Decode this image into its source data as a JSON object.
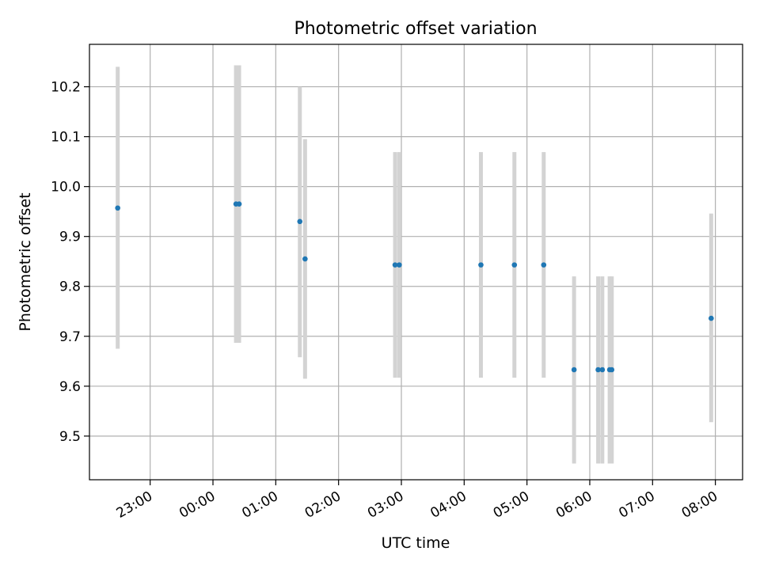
{
  "chart_data": {
    "type": "scatter",
    "title": "Photometric offset variation",
    "xlabel": "UTC time",
    "ylabel": "Photometric offset",
    "xlim": [
      "22:02",
      "08:26"
    ],
    "ylim": [
      9.4125,
      10.285
    ],
    "x_ticks": [
      "23:00",
      "00:00",
      "01:00",
      "02:00",
      "03:00",
      "04:00",
      "05:00",
      "06:00",
      "07:00",
      "08:00"
    ],
    "y_ticks": [
      9.5,
      9.6,
      9.7,
      9.8,
      9.9,
      10.0,
      10.1,
      10.2
    ],
    "grid": true,
    "errorbar_color": "#d3d3d3",
    "marker_color": "#1f77b4",
    "points": [
      {
        "time": "22:29",
        "y": 9.957,
        "ylow": 9.675,
        "yhigh": 10.24
      },
      {
        "time": "00:22",
        "y": 9.965,
        "ylow": 9.687,
        "yhigh": 10.243
      },
      {
        "time": "00:25",
        "y": 9.965,
        "ylow": 9.687,
        "yhigh": 10.243
      },
      {
        "time": "01:23",
        "y": 9.93,
        "ylow": 9.658,
        "yhigh": 10.2
      },
      {
        "time": "01:28",
        "y": 9.855,
        "ylow": 9.615,
        "yhigh": 10.095
      },
      {
        "time": "02:54",
        "y": 9.843,
        "ylow": 9.617,
        "yhigh": 10.069
      },
      {
        "time": "02:58",
        "y": 9.843,
        "ylow": 9.617,
        "yhigh": 10.069
      },
      {
        "time": "04:16",
        "y": 9.843,
        "ylow": 9.617,
        "yhigh": 10.069
      },
      {
        "time": "04:48",
        "y": 9.843,
        "ylow": 9.617,
        "yhigh": 10.069
      },
      {
        "time": "05:16",
        "y": 9.843,
        "ylow": 9.617,
        "yhigh": 10.069
      },
      {
        "time": "05:45",
        "y": 9.633,
        "ylow": 9.445,
        "yhigh": 9.82
      },
      {
        "time": "06:08",
        "y": 9.633,
        "ylow": 9.445,
        "yhigh": 9.82
      },
      {
        "time": "06:12",
        "y": 9.633,
        "ylow": 9.445,
        "yhigh": 9.82
      },
      {
        "time": "06:19",
        "y": 9.633,
        "ylow": 9.445,
        "yhigh": 9.82
      },
      {
        "time": "06:21",
        "y": 9.633,
        "ylow": 9.445,
        "yhigh": 9.82
      },
      {
        "time": "07:56",
        "y": 9.736,
        "ylow": 9.528,
        "yhigh": 9.946
      }
    ]
  }
}
